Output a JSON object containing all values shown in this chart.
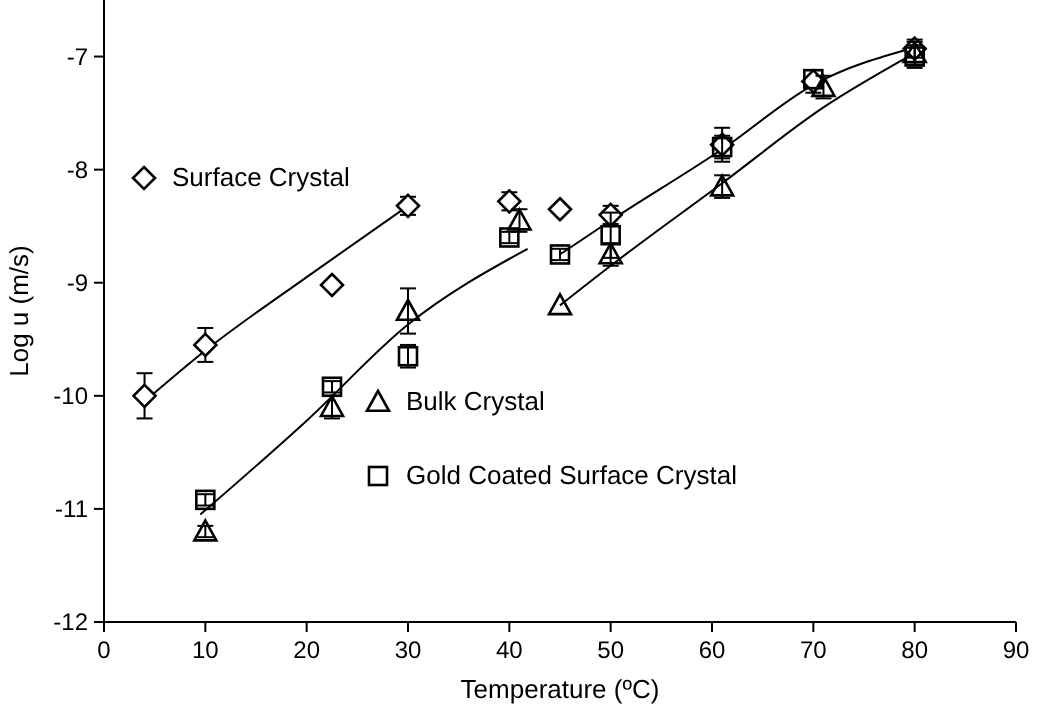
{
  "chart_data": {
    "type": "scatter",
    "xlabel": "Temperature (ºC)",
    "ylabel": "Log u (m/s)",
    "xlim": [
      0,
      90
    ],
    "ylim": [
      -12,
      -6.5
    ],
    "xticks": [
      0,
      10,
      20,
      30,
      40,
      50,
      60,
      70,
      80,
      90
    ],
    "yticks": [
      -12,
      -11,
      -10,
      -9,
      -8,
      -7
    ],
    "grid": false,
    "legend": "left",
    "series": [
      {
        "name": "Surface Crystal",
        "color": "#000000",
        "marker": "diamond",
        "x": [
          4,
          10,
          22.5,
          30,
          40,
          45,
          50,
          61,
          70,
          80
        ],
        "values": [
          -10.0,
          -9.55,
          -9.02,
          -8.32,
          -8.28,
          -8.35,
          -8.4,
          -7.78,
          -7.22,
          -6.93
        ],
        "errors": [
          0.2,
          0.15,
          null,
          0.08,
          0.08,
          null,
          0.08,
          0.15,
          0.1,
          0.08
        ]
      },
      {
        "name": "Bulk Crystal",
        "color": "#000000",
        "marker": "triangle",
        "x": [
          10,
          22.5,
          30,
          41,
          45,
          50,
          61,
          71,
          80
        ],
        "values": [
          -11.2,
          -10.1,
          -9.25,
          -8.45,
          -9.2,
          -8.75,
          -8.15,
          -7.27,
          -6.97
        ],
        "errors": [
          0.05,
          0.1,
          0.2,
          0.1,
          null,
          0.1,
          0.1,
          0.1,
          0.1
        ]
      },
      {
        "name": "Gold Coated Surface Crystal",
        "color": "#000000",
        "marker": "square",
        "x": [
          10,
          22.5,
          30,
          40,
          45,
          50,
          61,
          70,
          80
        ],
        "values": [
          -10.92,
          -9.92,
          -9.65,
          -8.6,
          -8.75,
          -8.58,
          -7.8,
          -7.2,
          -7.0
        ],
        "errors": [
          0.05,
          0.05,
          0.1,
          0.05,
          0.05,
          0.2,
          0.1,
          null,
          0.1
        ]
      },
      {
        "type": "line",
        "color": "#000000",
        "x": [
          4,
          10,
          20,
          30
        ],
        "values": [
          -10.05,
          -9.6,
          -8.95,
          -8.32
        ]
      },
      {
        "type": "line",
        "color": "#000000",
        "x": [
          9.5,
          20,
          30,
          41.8
        ],
        "values": [
          -11.05,
          -10.22,
          -9.37,
          -8.7
        ]
      },
      {
        "type": "line",
        "color": "#000000",
        "x": [
          45,
          50,
          61,
          70,
          80
        ],
        "values": [
          -8.75,
          -8.45,
          -7.82,
          -7.25,
          -6.92
        ]
      },
      {
        "type": "line",
        "color": "#000000",
        "x": [
          45,
          50,
          61,
          71,
          80
        ],
        "values": [
          -9.2,
          -8.85,
          -8.12,
          -7.45,
          -6.97
        ]
      }
    ]
  }
}
